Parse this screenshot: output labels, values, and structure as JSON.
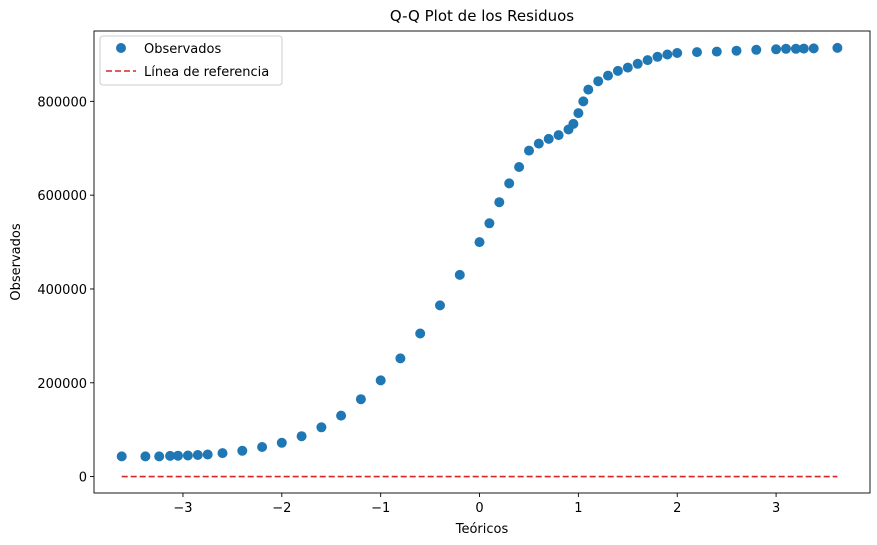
{
  "chart_data": {
    "type": "scatter",
    "title": "Q-Q Plot de los Residuos",
    "xlabel": "Teóricos",
    "ylabel": "Observados",
    "xlim": [
      -3.9,
      3.95
    ],
    "ylim": [
      -35000,
      950000
    ],
    "xticks": [
      -3,
      -2,
      -1,
      0,
      1,
      2,
      3
    ],
    "xtick_labels": [
      "−3",
      "−2",
      "−1",
      "0",
      "1",
      "2",
      "3"
    ],
    "yticks": [
      0,
      200000,
      400000,
      600000,
      800000
    ],
    "ytick_labels": [
      "0",
      "200000",
      "400000",
      "600000",
      "800000"
    ],
    "grid": false,
    "legend": {
      "position": "top-left",
      "entries": [
        "Observados",
        "Línea de referencia"
      ]
    },
    "series": [
      {
        "name": "Observados",
        "kind": "scatter",
        "color": "#1f77b4",
        "x": [
          -3.62,
          -3.38,
          -3.24,
          -3.13,
          -3.05,
          -2.95,
          -2.85,
          -2.75,
          -2.6,
          -2.4,
          -2.2,
          -2.0,
          -1.8,
          -1.6,
          -1.4,
          -1.2,
          -1.0,
          -0.8,
          -0.6,
          -0.4,
          -0.2,
          0.0,
          0.1,
          0.2,
          0.3,
          0.4,
          0.5,
          0.6,
          0.7,
          0.8,
          0.9,
          0.95,
          1.0,
          1.05,
          1.1,
          1.2,
          1.3,
          1.4,
          1.5,
          1.6,
          1.7,
          1.8,
          1.9,
          2.0,
          2.2,
          2.4,
          2.6,
          2.8,
          3.0,
          3.1,
          3.2,
          3.28,
          3.38,
          3.62
        ],
        "y": [
          43000,
          43000,
          43000,
          44000,
          44500,
          45000,
          46000,
          47000,
          50000,
          55000,
          63000,
          72000,
          86000,
          105000,
          130000,
          165000,
          205000,
          252000,
          305000,
          365000,
          430000,
          500000,
          540000,
          585000,
          625000,
          660000,
          695000,
          710000,
          720000,
          728000,
          740000,
          752000,
          775000,
          800000,
          825000,
          843000,
          855000,
          865000,
          872000,
          880000,
          888000,
          895000,
          900000,
          903000,
          905000,
          906000,
          908000,
          910000,
          911000,
          912000,
          912000,
          912500,
          913000,
          914000
        ]
      },
      {
        "name": "Línea de referencia",
        "kind": "line",
        "style": "dashed",
        "color": "#d62728",
        "x": [
          -3.62,
          3.62
        ],
        "y": [
          0,
          0
        ]
      }
    ]
  }
}
